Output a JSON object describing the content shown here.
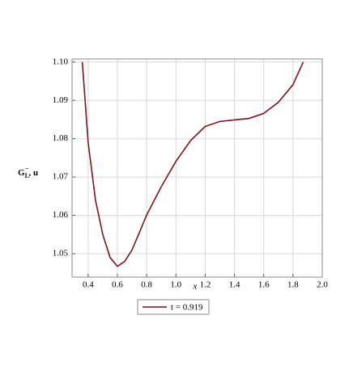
{
  "chart_data": {
    "type": "line",
    "xlabel": "x",
    "ylabel": {
      "base": "G",
      "sub": "L",
      "sup": "−",
      "rest": ", u"
    },
    "x": [
      0.36,
      0.4,
      0.45,
      0.5,
      0.55,
      0.6,
      0.65,
      0.7,
      0.75,
      0.8,
      0.9,
      1.0,
      1.1,
      1.2,
      1.3,
      1.4,
      1.5,
      1.6,
      1.7,
      1.8,
      1.87
    ],
    "series": [
      {
        "name": "t = 0.919",
        "color": "#7b1420",
        "values": [
          1.1,
          1.079,
          1.064,
          1.055,
          1.049,
          1.0467,
          1.048,
          1.051,
          1.0555,
          1.0601,
          1.0675,
          1.0741,
          1.0795,
          1.0832,
          1.0845,
          1.0849,
          1.0853,
          1.0866,
          1.0895,
          1.0941,
          1.1
        ]
      }
    ],
    "xlim": [
      0.29,
      2.0
    ],
    "ylim": [
      1.0439,
      1.1008
    ],
    "xticks": [
      0.4,
      0.6,
      0.8,
      {
        "value": 1.0,
        "label": "1.0"
      },
      1.2,
      1.4,
      1.6,
      1.8,
      {
        "value": 2.0,
        "label": "2.0"
      }
    ],
    "yticks": [
      1.05,
      1.06,
      1.07,
      1.08,
      1.09,
      {
        "value": 1.1,
        "label": "1.10"
      }
    ],
    "grid": true
  }
}
